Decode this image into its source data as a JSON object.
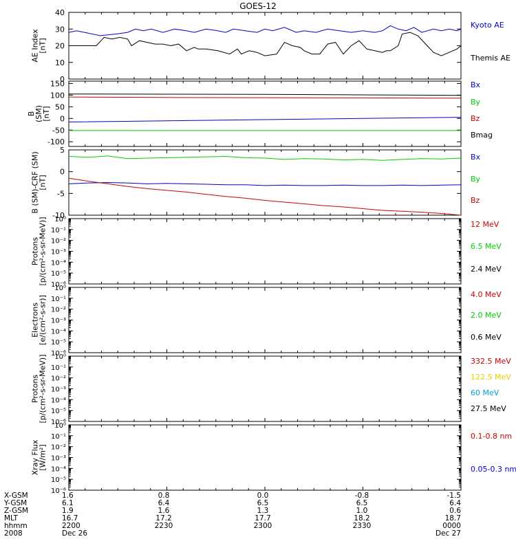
{
  "title": "GOES-12",
  "chart_data": [
    {
      "type": "line",
      "ylabel": [
        "AE Index",
        "[nT]"
      ],
      "ylim": [
        0,
        40
      ],
      "yticks": [
        0,
        10,
        20,
        30,
        40
      ],
      "series": [
        {
          "name": "Kyoto AE",
          "color": "#0000cc",
          "x": [
            0,
            2,
            4,
            8,
            12,
            15,
            17,
            19,
            21,
            24,
            27,
            30,
            32,
            35,
            38,
            40,
            42,
            45,
            48,
            50,
            52,
            55,
            58,
            60,
            63,
            66,
            69,
            72,
            75,
            78,
            80,
            82,
            84,
            86,
            88,
            90,
            93,
            95,
            97,
            99,
            100
          ],
          "y": [
            28,
            29,
            28,
            26,
            27,
            28,
            30,
            29,
            30,
            28,
            30,
            29,
            28,
            30,
            29,
            28,
            30,
            29,
            28,
            30,
            29,
            31,
            28,
            29,
            28,
            30,
            29,
            28,
            29,
            28,
            29,
            32,
            30,
            29,
            31,
            28,
            30,
            29,
            30,
            29,
            30
          ]
        },
        {
          "name": "Themis AE",
          "color": "#000000",
          "x": [
            0,
            3,
            7,
            9,
            11,
            13,
            15,
            16,
            18,
            20,
            22,
            24,
            26,
            28,
            30,
            32,
            33,
            35,
            38,
            41,
            43,
            44,
            45,
            46,
            48,
            50,
            53,
            55,
            57,
            59,
            60,
            62,
            64,
            66,
            68,
            70,
            72,
            74,
            76,
            78,
            80,
            81,
            82,
            84,
            85,
            87,
            89,
            91,
            93,
            95,
            97,
            99,
            100
          ],
          "y": [
            20,
            20,
            20,
            25,
            24,
            25,
            24,
            20,
            23,
            22,
            21,
            21,
            20,
            21,
            17,
            19,
            18,
            18,
            17,
            15,
            18,
            15,
            16,
            17,
            16,
            14,
            15,
            22,
            20,
            19,
            17,
            15,
            15,
            21,
            22,
            15,
            20,
            23,
            18,
            17,
            16,
            17,
            17,
            20,
            27,
            28,
            26,
            21,
            16,
            14,
            16,
            18,
            20
          ]
        }
      ]
    },
    {
      "type": "line",
      "ylabel": [
        "B",
        "(SM)",
        "[nT]"
      ],
      "ylim": [
        -120,
        160
      ],
      "yticks": [
        -100,
        -50,
        0,
        50,
        100,
        150
      ],
      "series": [
        {
          "name": "Bx",
          "color": "#0000cc",
          "x": [
            0,
            25,
            50,
            75,
            100
          ],
          "y": [
            -15,
            -10,
            -5,
            0,
            5
          ]
        },
        {
          "name": "By",
          "color": "#00cc00",
          "x": [
            0,
            25,
            50,
            75,
            100
          ],
          "y": [
            -52,
            -52,
            -52,
            -52,
            -52
          ]
        },
        {
          "name": "Bz",
          "color": "#cc0000",
          "x": [
            0,
            25,
            50,
            75,
            100
          ],
          "y": [
            92,
            90,
            89,
            88,
            87
          ]
        },
        {
          "name": "Bmag",
          "color": "#000000",
          "x": [
            0,
            25,
            50,
            75,
            100
          ],
          "y": [
            105,
            104,
            103,
            101,
            99
          ]
        }
      ]
    },
    {
      "type": "line",
      "ylabel": [
        "B (SM)-CRF (SM)",
        "[nT]"
      ],
      "ylim": [
        -10,
        5
      ],
      "yticks": [
        -10,
        -5,
        0,
        5
      ],
      "series": [
        {
          "name": "Bx",
          "color": "#0000cc",
          "x": [
            0,
            5,
            10,
            15,
            20,
            25,
            30,
            35,
            40,
            45,
            50,
            55,
            60,
            65,
            70,
            75,
            80,
            85,
            90,
            95,
            100
          ],
          "y": [
            -2.8,
            -2.6,
            -2.5,
            -2.6,
            -2.8,
            -2.7,
            -2.8,
            -2.9,
            -3.0,
            -3.0,
            -3.2,
            -3.1,
            -3.2,
            -3.2,
            -3.1,
            -3.2,
            -3.2,
            -3.1,
            -3.2,
            -3.1,
            -3.0
          ]
        },
        {
          "name": "By",
          "color": "#00cc00",
          "x": [
            0,
            5,
            10,
            15,
            20,
            25,
            30,
            35,
            40,
            45,
            50,
            55,
            60,
            65,
            70,
            75,
            80,
            85,
            90,
            95,
            100
          ],
          "y": [
            3.5,
            3.3,
            3.6,
            3.0,
            3.1,
            3.2,
            3.3,
            3.4,
            3.5,
            3.2,
            3.1,
            2.8,
            3.0,
            2.9,
            2.7,
            2.8,
            2.6,
            2.8,
            3.0,
            2.9,
            3.1
          ]
        },
        {
          "name": "Bz",
          "color": "#cc0000",
          "x": [
            0,
            5,
            10,
            15,
            20,
            25,
            30,
            35,
            40,
            45,
            50,
            55,
            60,
            65,
            70,
            75,
            80,
            85,
            90,
            95,
            100
          ],
          "y": [
            -1.5,
            -2.2,
            -2.8,
            -3.4,
            -3.9,
            -4.3,
            -4.7,
            -5.2,
            -5.7,
            -6.1,
            -6.6,
            -7.0,
            -7.4,
            -7.8,
            -8.1,
            -8.5,
            -8.9,
            -9.1,
            -9.3,
            -9.6,
            -10.0
          ]
        }
      ]
    },
    {
      "type": "line",
      "scale": "log",
      "ylabel": [
        "Protons",
        "[p/(cm²-s-sr-MeV)]"
      ],
      "ylim": [
        1e-06,
        1
      ],
      "series": [
        {
          "name": "12 MeV",
          "color": "#cc0000",
          "values": []
        },
        {
          "name": "6.5 MeV",
          "color": "#00cc00",
          "values": []
        },
        {
          "name": "2.4 MeV",
          "color": "#000000",
          "values": []
        }
      ]
    },
    {
      "type": "line",
      "scale": "log",
      "ylabel": [
        "Electrons",
        "[e/(cm²-s-sr)]"
      ],
      "ylim": [
        1e-06,
        1
      ],
      "series": [
        {
          "name": "4.0 MeV",
          "color": "#cc0000",
          "values": []
        },
        {
          "name": "2.0 MeV",
          "color": "#00cc00",
          "values": []
        },
        {
          "name": "0.6 MeV",
          "color": "#000000",
          "values": []
        }
      ]
    },
    {
      "type": "line",
      "scale": "log",
      "ylabel": [
        "Protons",
        "[p/(cm²-s-sr-MeV)]"
      ],
      "ylim": [
        1e-06,
        1
      ],
      "series": [
        {
          "name": "332.5 MeV",
          "color": "#cc0000",
          "values": []
        },
        {
          "name": "122.5 MeV",
          "color": "#e6d200",
          "values": []
        },
        {
          "name": "60 MeV",
          "color": "#00a0e0",
          "values": []
        },
        {
          "name": "27.5 MeV",
          "color": "#000000",
          "values": []
        }
      ]
    },
    {
      "type": "line",
      "scale": "log",
      "ylabel": [
        "Xray Flux",
        "[W/m²]"
      ],
      "ylim": [
        1e-06,
        1
      ],
      "series": [
        {
          "name": "0.1-0.8 nm",
          "color": "#cc0000",
          "values": []
        },
        {
          "name": "0.05-0.3 nm",
          "color": "#0000cc",
          "values": []
        }
      ]
    }
  ],
  "ephemeris": {
    "labels": [
      "X-GSM",
      "Y-GSM",
      "Z-GSM",
      "MLT",
      "hhmm",
      "2008"
    ],
    "columns": [
      [
        "1.6",
        "6.1",
        "1.9",
        "16.7",
        "2200",
        "Dec 26"
      ],
      [
        "0.8",
        "6.4",
        "1.6",
        "17.2",
        "2230",
        ""
      ],
      [
        "0.0",
        "6.5",
        "1.3",
        "17.7",
        "2300",
        ""
      ],
      [
        "-0.8",
        "6.5",
        "1.0",
        "18.2",
        "2330",
        ""
      ],
      [
        "-1.5",
        "6.4",
        "0.6",
        "18.7",
        "0000",
        "Dec 27"
      ]
    ]
  }
}
